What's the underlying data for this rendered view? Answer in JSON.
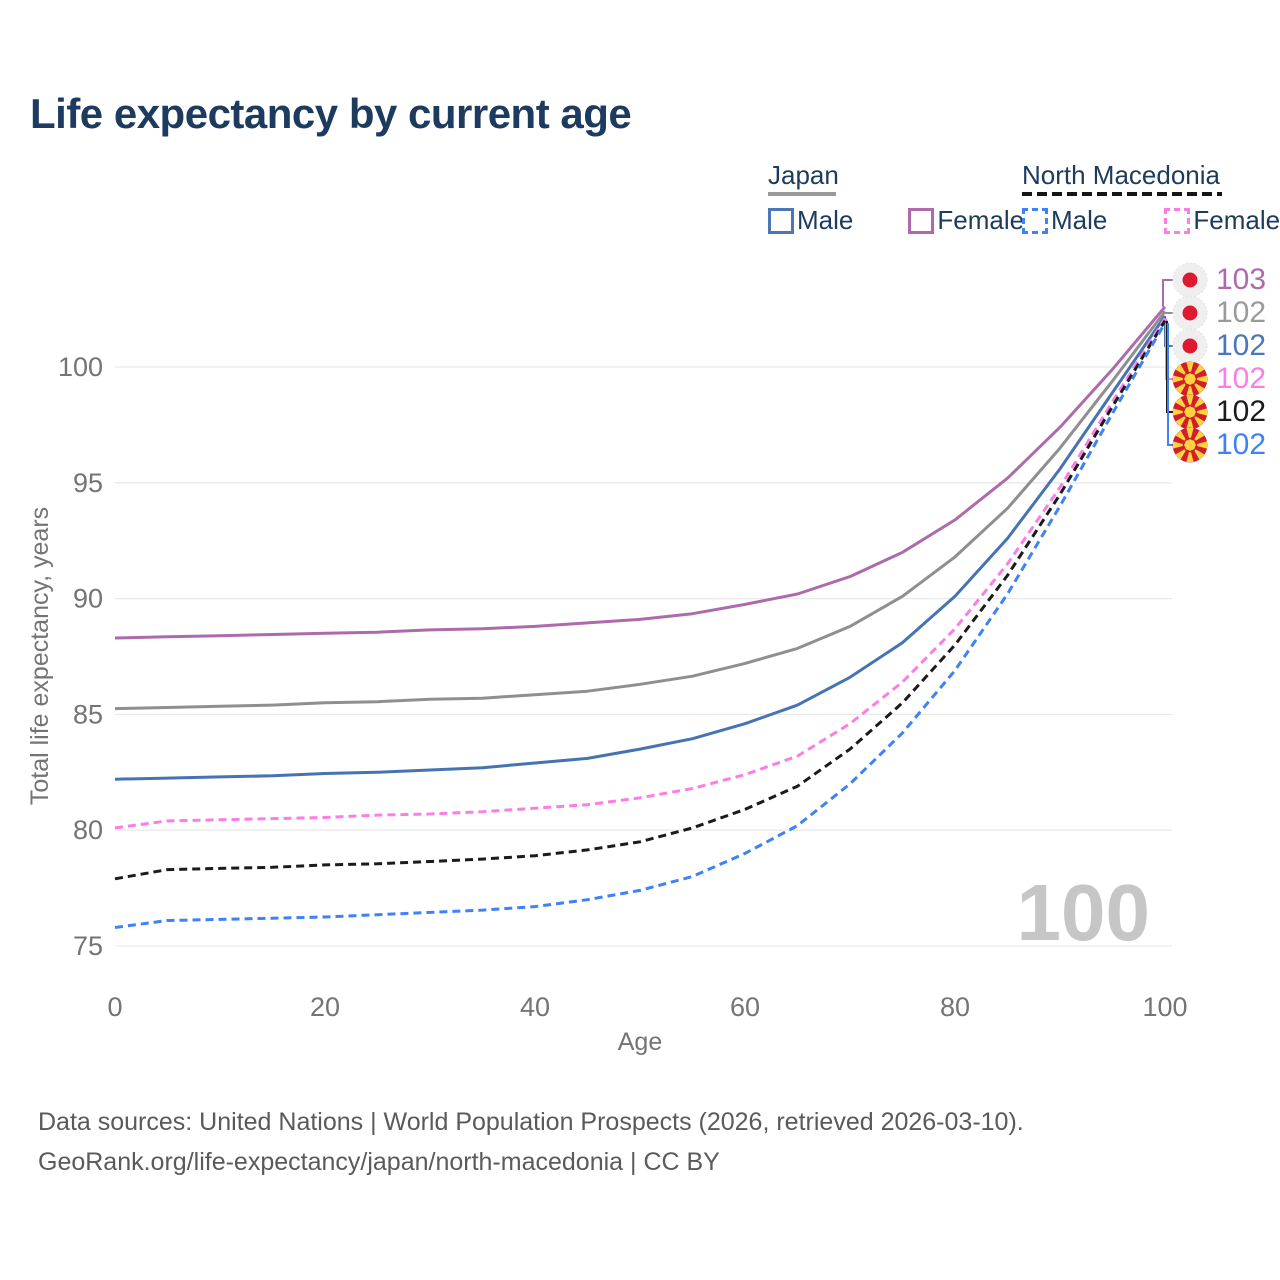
{
  "title": "Life expectancy by current age",
  "legend": {
    "japan": {
      "label": "Japan",
      "male_label": "Male",
      "female_label": "Female",
      "underline_color": "#9a9a9a",
      "male_color": "#4a77b8",
      "female_color": "#ad6bab"
    },
    "north_macedonia": {
      "label": "North Macedonia",
      "male_label": "Male",
      "female_label": "Female",
      "underline_color": "#141414",
      "male_color": "#3e82f5",
      "female_color": "#fc7de4"
    }
  },
  "watermark": "100",
  "end_labels": [
    {
      "flag": "japan",
      "value": "103",
      "color": "#ad6bab",
      "series": "japan-female"
    },
    {
      "flag": "japan",
      "value": "102",
      "color": "#9a9a9a",
      "series": "japan-total"
    },
    {
      "flag": "japan",
      "value": "102",
      "color": "#4a77b8",
      "series": "japan-male"
    },
    {
      "flag": "north-macedonia",
      "value": "102",
      "color": "#fc7de4",
      "series": "north-macedonia-female"
    },
    {
      "flag": "north-macedonia",
      "value": "102",
      "color": "#1b1b1b",
      "series": "north-macedonia-total"
    },
    {
      "flag": "north-macedonia",
      "value": "102",
      "color": "#3e82f5",
      "series": "north-macedonia-male"
    }
  ],
  "footer": {
    "line1": "Data sources: United Nations | World Population Prospects (2026, retrieved 2026-03-10).",
    "line2": "GeoRank.org/life-expectancy/japan/north-macedonia | CC BY"
  },
  "chart_data": {
    "type": "line",
    "title": "Life expectancy by current age",
    "xlabel": "Age",
    "ylabel": "Total life expectancy, years",
    "xlim": [
      0,
      100
    ],
    "ylim": [
      75,
      100
    ],
    "xticks": [
      0,
      20,
      40,
      60,
      80,
      100
    ],
    "yticks": [
      75,
      80,
      85,
      90,
      95,
      100
    ],
    "grid": "horizontal",
    "legend_position": "top-right",
    "x": [
      0,
      5,
      10,
      15,
      20,
      25,
      30,
      35,
      40,
      45,
      50,
      55,
      60,
      65,
      70,
      75,
      80,
      85,
      90,
      95,
      100
    ],
    "series": [
      {
        "id": "japan-female",
        "name": "Japan Female",
        "style": "solid",
        "color": "#ad6bab",
        "values": [
          88.3,
          88.35,
          88.4,
          88.45,
          88.5,
          88.55,
          88.65,
          88.7,
          88.8,
          88.95,
          89.1,
          89.35,
          89.75,
          90.2,
          90.95,
          92.0,
          93.4,
          95.2,
          97.4,
          99.9,
          102.6
        ]
      },
      {
        "id": "japan-total",
        "name": "Japan Total",
        "style": "solid",
        "color": "#8f8f8f",
        "values": [
          85.25,
          85.3,
          85.35,
          85.4,
          85.5,
          85.55,
          85.65,
          85.7,
          85.85,
          86.0,
          86.3,
          86.65,
          87.2,
          87.85,
          88.8,
          90.1,
          91.8,
          93.9,
          96.5,
          99.4,
          102.4
        ]
      },
      {
        "id": "japan-male",
        "name": "Japan Male",
        "style": "solid",
        "color": "#4673b2",
        "values": [
          82.2,
          82.25,
          82.3,
          82.35,
          82.45,
          82.5,
          82.6,
          82.7,
          82.9,
          83.1,
          83.5,
          83.95,
          84.6,
          85.4,
          86.6,
          88.1,
          90.1,
          92.6,
          95.6,
          98.9,
          102.2
        ]
      },
      {
        "id": "north-macedonia-female",
        "name": "North Macedonia Female",
        "style": "dashed",
        "color": "#fc7de4",
        "values": [
          80.1,
          80.4,
          80.45,
          80.5,
          80.55,
          80.65,
          80.7,
          80.8,
          80.95,
          81.1,
          81.4,
          81.8,
          82.4,
          83.2,
          84.6,
          86.4,
          88.7,
          91.5,
          94.8,
          98.5,
          102.1
        ]
      },
      {
        "id": "north-macedonia-total",
        "name": "North Macedonia Total",
        "style": "dashed",
        "color": "#1b1b1b",
        "values": [
          77.9,
          78.3,
          78.35,
          78.4,
          78.5,
          78.55,
          78.65,
          78.75,
          78.9,
          79.15,
          79.5,
          80.1,
          80.9,
          81.9,
          83.5,
          85.5,
          88.0,
          91.0,
          94.5,
          98.3,
          102.0
        ]
      },
      {
        "id": "north-macedonia-male",
        "name": "North Macedonia Male",
        "style": "dashed",
        "color": "#3e82f5",
        "values": [
          75.8,
          76.1,
          76.15,
          76.2,
          76.25,
          76.35,
          76.45,
          76.55,
          76.7,
          77.0,
          77.4,
          78.0,
          79.0,
          80.2,
          82.0,
          84.2,
          86.9,
          90.2,
          94.0,
          98.0,
          101.9
        ]
      }
    ]
  }
}
